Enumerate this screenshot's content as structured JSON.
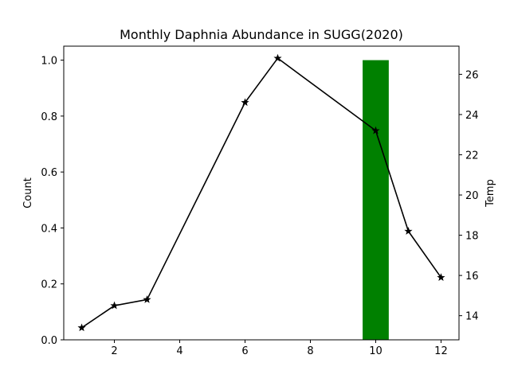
{
  "chart_data": {
    "type": "bar+line",
    "title": "Monthly Daphnia Abundance in SUGG(2020)",
    "left_axis": {
      "label": "Count",
      "ylim": [
        0,
        1.05
      ],
      "ticks": [
        0.0,
        0.2,
        0.4,
        0.6,
        0.8,
        1.0
      ],
      "tick_labels": [
        "0.0",
        "0.2",
        "0.4",
        "0.6",
        "0.8",
        "1.0"
      ]
    },
    "right_axis": {
      "label": "Temp",
      "ylim": [
        12.8,
        27.4
      ],
      "ticks": [
        14,
        16,
        18,
        20,
        22,
        24,
        26
      ],
      "tick_labels": [
        "14",
        "16",
        "18",
        "20",
        "22",
        "24",
        "26"
      ]
    },
    "x_axis": {
      "label": "",
      "xlim": [
        0.45,
        12.55
      ],
      "ticks": [
        2,
        4,
        6,
        8,
        10,
        12
      ],
      "tick_labels": [
        "2",
        "4",
        "6",
        "8",
        "10",
        "12"
      ]
    },
    "bars": {
      "name": "",
      "axis": "left",
      "color": "#008000",
      "width": 0.8,
      "x": [
        10
      ],
      "values": [
        1.0
      ]
    },
    "line": {
      "name": "",
      "axis": "right",
      "color": "#000000",
      "marker": "star",
      "x": [
        1,
        2,
        3,
        6,
        7,
        10,
        11,
        12
      ],
      "values": [
        13.4,
        14.5,
        14.8,
        24.6,
        26.8,
        23.2,
        18.2,
        15.9
      ]
    },
    "grid": false,
    "legend": "none"
  }
}
